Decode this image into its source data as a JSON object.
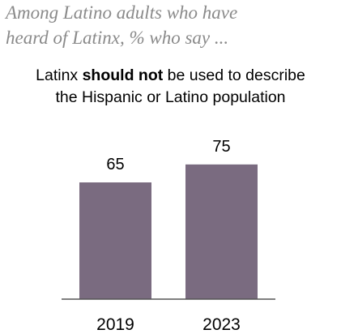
{
  "subtitle": {
    "line1": "Among Latino adults who have",
    "line2": "heard of Latinx, % who say ..."
  },
  "title": {
    "line1_before": "Latinx ",
    "line1_bold": "should not",
    "line1_after": " be used to describe",
    "line2": "the Hispanic or Latino population"
  },
  "colors": {
    "bar": "#7a6b80",
    "axis": "#555555"
  },
  "chart_data": {
    "type": "bar",
    "categories": [
      "2019",
      "2023"
    ],
    "values": [
      65,
      75
    ],
    "title": "Latinx should not be used to describe the Hispanic or Latino population",
    "xlabel": "",
    "ylabel": "",
    "ylim": [
      0,
      100
    ],
    "grid": false,
    "legend": "none",
    "data_labels": true
  }
}
